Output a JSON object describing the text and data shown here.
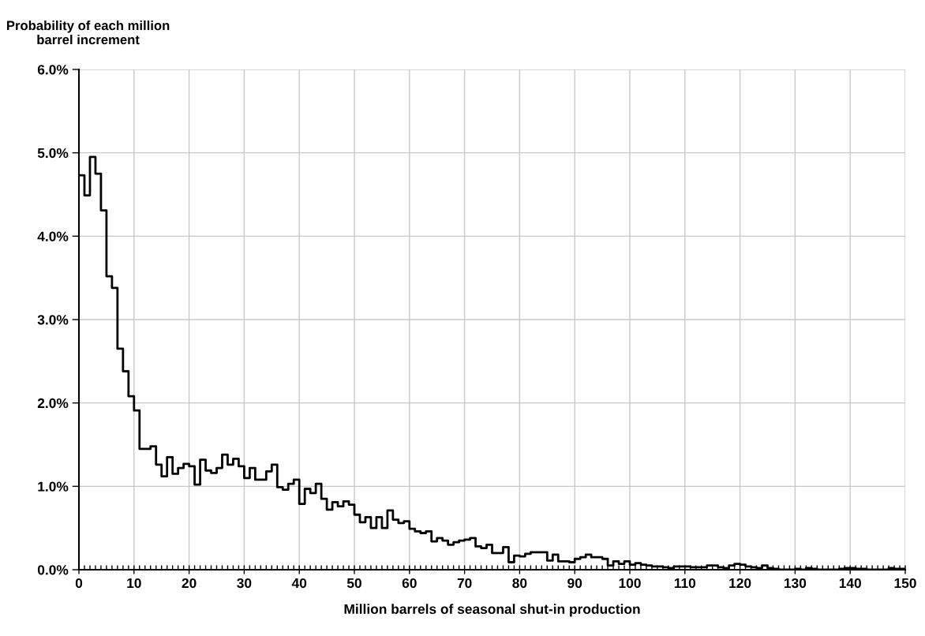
{
  "chart_data": {
    "type": "histogram",
    "xlabel": "Million barrels of seasonal shut-in production",
    "ylabel": "Probability of each million\nbarrel increment",
    "color": "#000000",
    "bins": [
      0,
      1,
      2,
      3,
      4,
      5,
      6,
      7,
      8,
      9,
      10,
      11,
      12,
      13,
      14,
      15,
      16,
      17,
      18,
      19,
      20,
      21,
      22,
      23,
      24,
      25,
      26,
      27,
      28,
      29,
      30,
      31,
      32,
      33,
      34,
      35,
      36,
      37,
      38,
      39,
      40,
      41,
      42,
      43,
      44,
      45,
      46,
      47,
      48,
      49,
      50,
      51,
      52,
      53,
      54,
      55,
      56,
      57,
      58,
      59,
      60,
      61,
      62,
      63,
      64,
      65,
      66,
      67,
      68,
      69,
      70,
      71,
      72,
      73,
      74,
      75,
      76,
      77,
      78,
      79,
      80,
      81,
      82,
      83,
      84,
      85,
      86,
      87,
      88,
      89,
      90,
      91,
      92,
      93,
      94,
      95,
      96,
      97,
      98,
      99,
      100,
      101,
      102,
      103,
      104,
      105,
      106,
      107,
      108,
      109,
      110,
      111,
      112,
      113,
      114,
      115,
      116,
      117,
      118,
      119,
      120,
      121,
      122,
      123,
      124,
      125,
      126,
      127,
      128,
      129,
      130,
      131,
      132,
      133,
      134,
      135,
      136,
      137,
      138,
      139,
      140,
      141,
      142,
      143,
      144,
      145,
      146,
      147,
      148,
      149,
      150
    ],
    "values": [
      4.73,
      4.49,
      4.95,
      4.75,
      4.31,
      3.52,
      3.38,
      2.65,
      2.38,
      2.08,
      1.91,
      1.45,
      1.45,
      1.48,
      1.26,
      1.12,
      1.35,
      1.15,
      1.22,
      1.27,
      1.24,
      1.02,
      1.32,
      1.19,
      1.16,
      1.22,
      1.38,
      1.26,
      1.33,
      1.24,
      1.1,
      1.22,
      1.08,
      1.08,
      1.18,
      1.26,
      0.99,
      0.96,
      1.03,
      1.08,
      0.79,
      0.97,
      0.92,
      1.03,
      0.85,
      0.72,
      0.81,
      0.76,
      0.82,
      0.78,
      0.66,
      0.57,
      0.63,
      0.5,
      0.63,
      0.5,
      0.71,
      0.6,
      0.56,
      0.58,
      0.49,
      0.46,
      0.44,
      0.46,
      0.34,
      0.38,
      0.35,
      0.3,
      0.33,
      0.35,
      0.36,
      0.38,
      0.28,
      0.26,
      0.3,
      0.2,
      0.2,
      0.27,
      0.09,
      0.17,
      0.16,
      0.19,
      0.21,
      0.21,
      0.21,
      0.11,
      0.18,
      0.1,
      0.1,
      0.09,
      0.13,
      0.15,
      0.18,
      0.15,
      0.15,
      0.13,
      0.05,
      0.1,
      0.07,
      0.1,
      0.06,
      0.08,
      0.06,
      0.05,
      0.04,
      0.04,
      0.03,
      0.02,
      0.04,
      0.04,
      0.04,
      0.03,
      0.03,
      0.03,
      0.05,
      0.05,
      0.03,
      0.02,
      0.05,
      0.07,
      0.06,
      0.04,
      0.03,
      0.02,
      0.05,
      0.02,
      0.01,
      0.0,
      0.0,
      0.0,
      0.01,
      0.0,
      0.02,
      0.01,
      0.0,
      0.0,
      0.0,
      0.0,
      0.01,
      0.02,
      0.02,
      0.01,
      0.01,
      0.0,
      0.0,
      0.0,
      0.0,
      0.02,
      0.01,
      0.01
    ],
    "xlim": [
      0,
      150
    ],
    "xticks": [
      0,
      10,
      20,
      30,
      40,
      50,
      60,
      70,
      80,
      90,
      100,
      110,
      120,
      130,
      140,
      150
    ],
    "ylim": [
      0,
      6
    ],
    "yticks": [
      {
        "value": 0,
        "label": "0.0%"
      },
      {
        "value": 1,
        "label": "1.0%"
      },
      {
        "value": 2,
        "label": "2.0%"
      },
      {
        "value": 3,
        "label": "3.0%"
      },
      {
        "value": 4,
        "label": "4.0%"
      },
      {
        "value": 5,
        "label": "5.0%"
      },
      {
        "value": 6,
        "label": "6.0%"
      }
    ],
    "grid": true,
    "legend": false
  }
}
